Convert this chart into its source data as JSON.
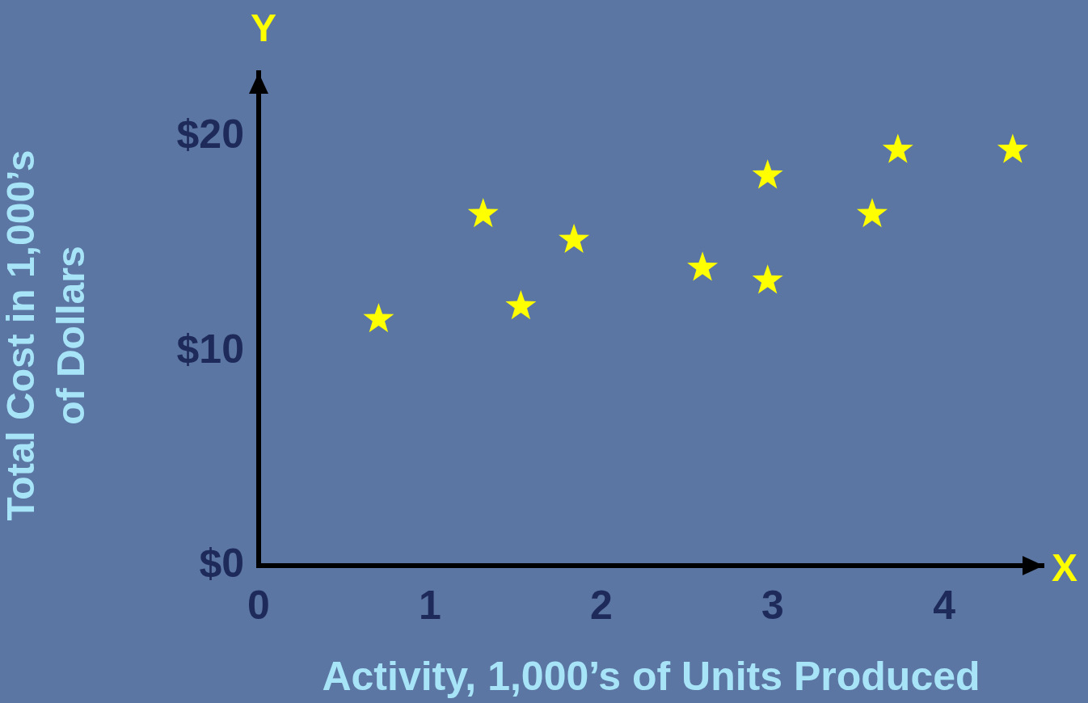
{
  "chart_data": {
    "type": "scatter",
    "xlabel": "Activity, 1,000’s of Units Produced",
    "ylabel": "Total Cost in 1,000’s of Dollars",
    "annotations": [
      "Y",
      "X"
    ],
    "x": [
      0.7,
      1.31,
      1.53,
      1.84,
      2.59,
      2.97,
      2.97,
      3.58,
      3.73,
      4.4
    ],
    "series": [
      {
        "color": "#ffff00",
        "values": [
          11.5,
          16.4,
          12.1,
          15.2,
          13.9,
          18.2,
          13.3,
          16.4,
          19.4,
          19.4
        ]
      }
    ],
    "xlim": [
      0,
      4.58
    ],
    "xticks": [
      0,
      1,
      2,
      3,
      4
    ],
    "ylim": [
      0,
      23
    ],
    "yticks": [
      {
        "value": 0,
        "label": "$0"
      },
      {
        "value": 10,
        "label": "$10"
      },
      {
        "value": 20,
        "label": "$20"
      }
    ],
    "grid": false,
    "legend": false,
    "marker": "star"
  }
}
